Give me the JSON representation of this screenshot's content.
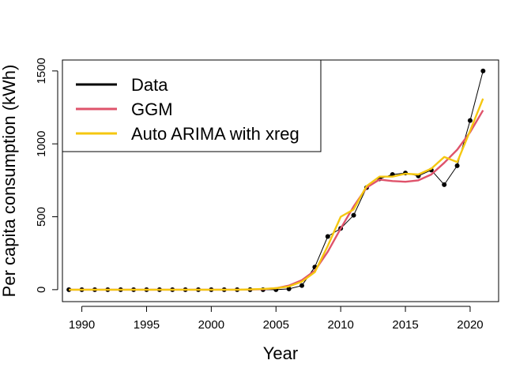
{
  "chart_data": {
    "type": "line",
    "xlabel": "Year",
    "ylabel": "Per capita consumption (kWh)",
    "xlim": [
      1988.5,
      2022.2
    ],
    "ylim": [
      -82,
      1575
    ],
    "x_ticks": [
      1990,
      1995,
      2000,
      2005,
      2010,
      2015,
      2020
    ],
    "y_ticks": [
      0,
      500,
      1000,
      1500
    ],
    "grid": false,
    "legend_position": "top-left",
    "series": [
      {
        "name": "Data",
        "color": "#000000",
        "style": "line+points",
        "x": [
          1989,
          1990,
          1991,
          1992,
          1993,
          1994,
          1995,
          1996,
          1997,
          1998,
          1999,
          2000,
          2001,
          2002,
          2003,
          2004,
          2005,
          2006,
          2007,
          2008,
          2009,
          2010,
          2011,
          2012,
          2013,
          2014,
          2015,
          2016,
          2017,
          2018,
          2019,
          2020,
          2021
        ],
        "values": [
          0,
          0,
          0,
          0,
          0,
          0,
          0,
          0,
          0,
          0,
          0,
          0,
          0,
          0,
          0,
          0,
          0,
          5,
          28,
          155,
          365,
          420,
          510,
          700,
          760,
          790,
          800,
          780,
          820,
          720,
          850,
          1160,
          1500
        ]
      },
      {
        "name": "GGM",
        "color": "#DF536B",
        "style": "line",
        "x": [
          1989,
          1990,
          1991,
          1992,
          1993,
          1994,
          1995,
          1996,
          1997,
          1998,
          1999,
          2000,
          2001,
          2002,
          2003,
          2004,
          2005,
          2006,
          2007,
          2008,
          2009,
          2010,
          2011,
          2012,
          2013,
          2014,
          2015,
          2016,
          2017,
          2018,
          2019,
          2020,
          2021
        ],
        "values": [
          0,
          0,
          0,
          0,
          0,
          0,
          0,
          0,
          0,
          0,
          0,
          0,
          0,
          0,
          1,
          3,
          10,
          28,
          65,
          130,
          260,
          420,
          570,
          700,
          755,
          745,
          740,
          750,
          790,
          870,
          960,
          1080,
          1230
        ]
      },
      {
        "name": "Auto ARIMA with xreg",
        "color": "#F5C710",
        "style": "line",
        "x": [
          1989,
          1990,
          1991,
          1992,
          1993,
          1994,
          1995,
          1996,
          1997,
          1998,
          1999,
          2000,
          2001,
          2002,
          2003,
          2004,
          2005,
          2006,
          2007,
          2008,
          2009,
          2010,
          2011,
          2012,
          2013,
          2014,
          2015,
          2016,
          2017,
          2018,
          2019,
          2020,
          2021
        ],
        "values": [
          0,
          0,
          0,
          0,
          0,
          0,
          0,
          0,
          0,
          0,
          0,
          0,
          0,
          0,
          2,
          5,
          10,
          22,
          55,
          120,
          300,
          500,
          550,
          710,
          775,
          775,
          795,
          790,
          830,
          910,
          875,
          1090,
          1310
        ]
      }
    ]
  }
}
